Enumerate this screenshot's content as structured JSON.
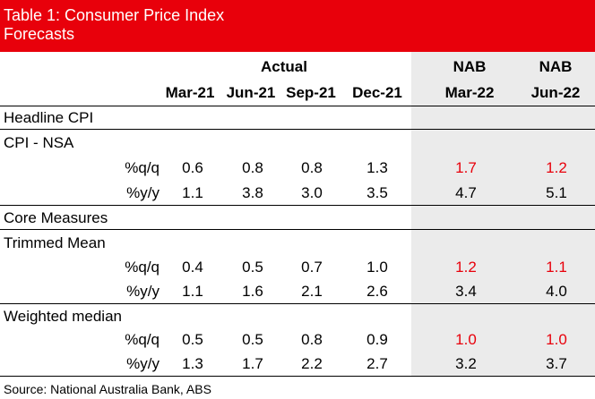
{
  "title": {
    "line1": "Table 1: Consumer Price Index",
    "line2": "Forecasts"
  },
  "header": {
    "actual": "Actual",
    "nab1": "NAB",
    "nab2": "NAB",
    "cols": [
      "Mar-21",
      "Jun-21",
      "Sep-21",
      "Dec-21",
      "Mar-22",
      "Jun-22"
    ]
  },
  "sections": {
    "headline": "Headline CPI",
    "core": "Core Measures"
  },
  "groups": [
    {
      "label": "CPI - NSA",
      "rows": [
        {
          "label": "%q/q",
          "values": [
            "0.6",
            "0.8",
            "0.8",
            "1.3",
            "1.7",
            "1.2"
          ]
        },
        {
          "label": "%y/y",
          "values": [
            "1.1",
            "3.8",
            "3.0",
            "3.5",
            "4.7",
            "5.1"
          ]
        }
      ]
    },
    {
      "label": "Trimmed Mean",
      "rows": [
        {
          "label": "%q/q",
          "values": [
            "0.4",
            "0.5",
            "0.7",
            "1.0",
            "1.2",
            "1.1"
          ]
        },
        {
          "label": "%y/y",
          "values": [
            "1.1",
            "1.6",
            "2.1",
            "2.6",
            "3.4",
            "4.0"
          ]
        }
      ]
    },
    {
      "label": "Weighted median",
      "rows": [
        {
          "label": "%q/q",
          "values": [
            "0.5",
            "0.5",
            "0.8",
            "0.9",
            "1.0",
            "1.0"
          ]
        },
        {
          "label": "%y/y",
          "values": [
            "1.3",
            "1.7",
            "2.2",
            "2.7",
            "3.2",
            "3.7"
          ]
        }
      ]
    }
  ],
  "colors": {
    "title_bg": "#e8000b",
    "forecast_red": "#e8000b",
    "forecast_shade": "#ebebeb"
  },
  "footer": "Source: National Australia Bank, ABS"
}
